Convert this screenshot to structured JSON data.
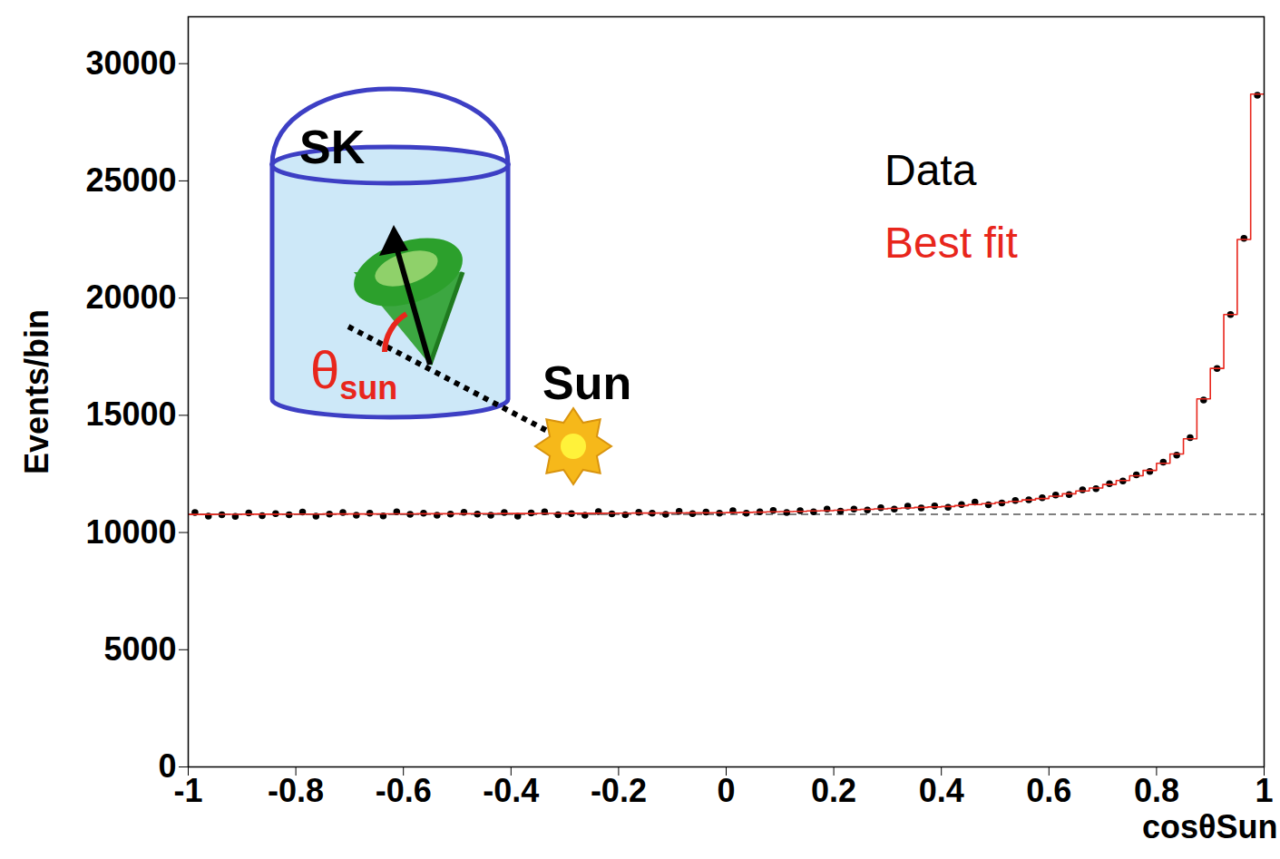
{
  "chart_data": {
    "type": "histogram",
    "xlabel": "cosθSun",
    "ylabel": "Events/bin",
    "xlim": [
      -1,
      1
    ],
    "ylim": [
      0,
      32000
    ],
    "xticks": [
      -1,
      -0.8,
      -0.6,
      -0.4,
      -0.2,
      0,
      0.2,
      0.4,
      0.6,
      0.8,
      1
    ],
    "yticks": [
      0,
      5000,
      10000,
      15000,
      20000,
      25000,
      30000
    ],
    "grid": false,
    "legend": "top-right",
    "bins": [
      -1,
      -0.975,
      -0.95,
      -0.925,
      -0.9,
      -0.875,
      -0.85,
      -0.825,
      -0.8,
      -0.775,
      -0.75,
      -0.725,
      -0.7,
      -0.675,
      -0.65,
      -0.625,
      -0.6,
      -0.575,
      -0.55,
      -0.525,
      -0.5,
      -0.475,
      -0.45,
      -0.425,
      -0.4,
      -0.375,
      -0.35,
      -0.325,
      -0.3,
      -0.275,
      -0.25,
      -0.225,
      -0.2,
      -0.175,
      -0.15,
      -0.125,
      -0.1,
      -0.075,
      -0.05,
      -0.025,
      0,
      0.025,
      0.05,
      0.075,
      0.1,
      0.125,
      0.15,
      0.175,
      0.2,
      0.225,
      0.25,
      0.275,
      0.3,
      0.325,
      0.35,
      0.375,
      0.4,
      0.425,
      0.45,
      0.475,
      0.5,
      0.525,
      0.55,
      0.575,
      0.6,
      0.625,
      0.65,
      0.675,
      0.7,
      0.725,
      0.75,
      0.775,
      0.8,
      0.825,
      0.85,
      0.875,
      0.9,
      0.925,
      0.95,
      0.975,
      1
    ],
    "series": [
      {
        "name": "Data",
        "type": "scatter",
        "marker": "point",
        "color": "#000000",
        "values": [
          10850,
          10700,
          10760,
          10690,
          10830,
          10720,
          10810,
          10760,
          10870,
          10700,
          10790,
          10850,
          10740,
          10820,
          10710,
          10880,
          10780,
          10820,
          10740,
          10790,
          10860,
          10790,
          10740,
          10850,
          10700,
          10830,
          10880,
          10760,
          10810,
          10740,
          10890,
          10800,
          10760,
          10860,
          10820,
          10780,
          10900,
          10810,
          10870,
          10820,
          10930,
          10820,
          10880,
          10940,
          10850,
          10930,
          10880,
          11000,
          10910,
          11000,
          10960,
          11060,
          11000,
          11120,
          11050,
          11130,
          11080,
          11190,
          11300,
          11180,
          11260,
          11370,
          11400,
          11480,
          11600,
          11620,
          11820,
          11870,
          12080,
          12200,
          12460,
          12600,
          13000,
          13300,
          14050,
          15650,
          17000,
          19300,
          22550,
          28650
        ]
      },
      {
        "name": "Best fit",
        "type": "step",
        "line_style": "solid",
        "color": "#e8261c",
        "values": [
          10770,
          10770,
          10775,
          10775,
          10780,
          10780,
          10780,
          10785,
          10785,
          10785,
          10790,
          10790,
          10790,
          10790,
          10795,
          10795,
          10795,
          10800,
          10800,
          10800,
          10800,
          10805,
          10805,
          10810,
          10810,
          10810,
          10815,
          10815,
          10820,
          10820,
          10820,
          10825,
          10825,
          10830,
          10830,
          10835,
          10835,
          10840,
          10840,
          10845,
          10850,
          10860,
          10870,
          10880,
          10890,
          10900,
          10920,
          10930,
          10950,
          10970,
          10990,
          11010,
          11030,
          11050,
          11070,
          11090,
          11110,
          11150,
          11190,
          11230,
          11280,
          11330,
          11390,
          11450,
          11550,
          11650,
          11770,
          11900,
          12050,
          12220,
          12420,
          12650,
          12950,
          13350,
          14000,
          15700,
          17000,
          19300,
          22500,
          28700
        ]
      }
    ],
    "reference_line": {
      "value": 10780,
      "line_style": "dashed",
      "color": "#555555"
    },
    "inset": {
      "detector": "SK",
      "angle_label": "θsun",
      "source": "Sun"
    }
  }
}
